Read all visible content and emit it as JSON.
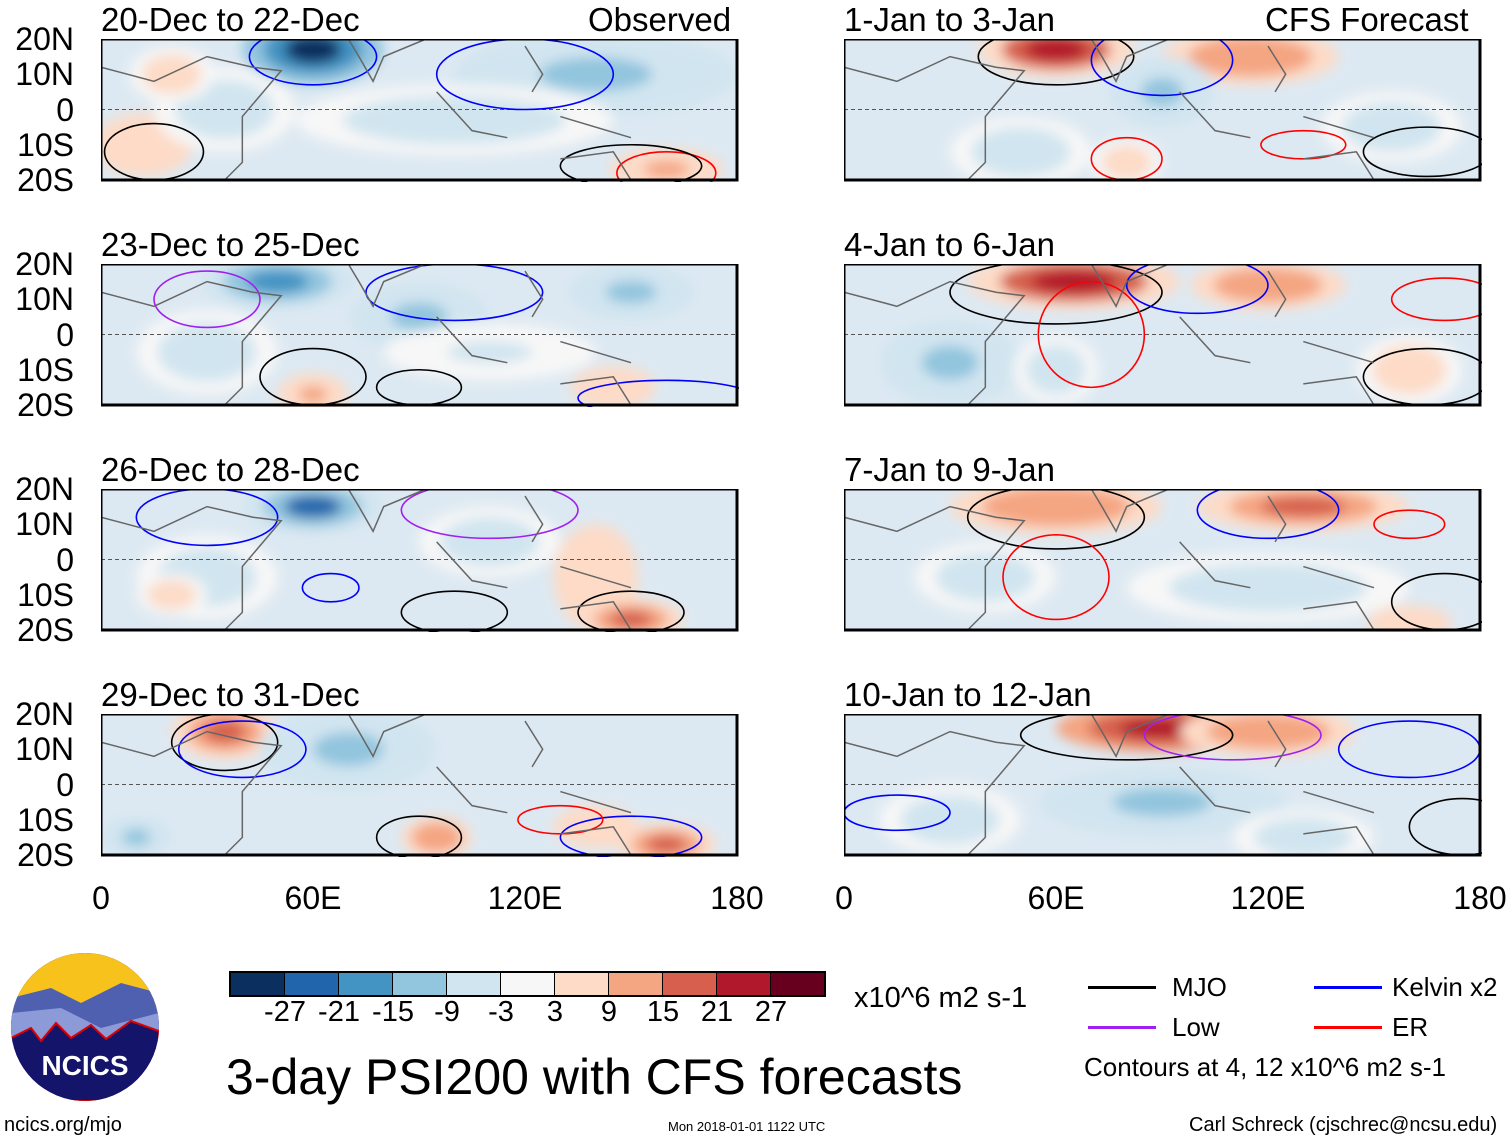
{
  "header": {
    "left_label": "Observed",
    "right_label": "CFS Forecast"
  },
  "y_ticks": [
    "20N",
    "10N",
    "0",
    "10S",
    "20S"
  ],
  "x_ticks": [
    "0",
    "60E",
    "120E",
    "180"
  ],
  "colorbar": {
    "colors": [
      "#0b2f5e",
      "#2166ac",
      "#4393c3",
      "#92c5de",
      "#d1e5f0",
      "#f7f7f7",
      "#fddbc7",
      "#f4a582",
      "#d6604d",
      "#b2182b",
      "#67001f"
    ],
    "ticks": [
      "-27",
      "-21",
      "-15",
      "-9",
      "-3",
      "3",
      "9",
      "15",
      "21",
      "27"
    ],
    "units": "x10^6 m2 s-1"
  },
  "legend": {
    "items": [
      {
        "label": "MJO",
        "color": "#000000"
      },
      {
        "label": "Kelvin x2",
        "color": "#0000ff"
      },
      {
        "label": "Low",
        "color": "#a020f0"
      },
      {
        "label": "ER",
        "color": "#ff0000"
      }
    ],
    "note": "Contours at 4, 12 x10^6 m2 s-1"
  },
  "title": "3-day PSI200 with CFS forecasts",
  "logo_text": "NCICS",
  "footer": {
    "url": "ncics.org/mjo",
    "timestamp": "Mon 2018-01-01 1122 UTC",
    "author": "Carl Schreck (cjschrec@ncsu.edu)"
  },
  "chart_data": {
    "type": "heatmap",
    "lon_range": [
      0,
      180
    ],
    "lat_range": [
      -20,
      20
    ],
    "panels": [
      {
        "title": "20-Dec to 22-Dec",
        "blobs": [
          [
            60,
            17,
            -27,
            20,
            10
          ],
          [
            140,
            10,
            -9,
            40,
            12
          ],
          [
            100,
            -3,
            -6,
            45,
            10
          ],
          [
            12,
            -10,
            9,
            14,
            9
          ],
          [
            160,
            -17,
            12,
            16,
            6
          ],
          [
            35,
            0,
            -5,
            20,
            12
          ],
          [
            20,
            10,
            6,
            12,
            8
          ]
        ],
        "contours": [
          [
            15,
            -12,
            "#000",
            14,
            8
          ],
          [
            120,
            10,
            "#00f",
            25,
            10
          ],
          [
            160,
            -18,
            "#f00",
            14,
            6
          ],
          [
            150,
            -16,
            "#000",
            20,
            6
          ],
          [
            60,
            15,
            "#00f",
            18,
            8
          ]
        ]
      },
      {
        "title": "1-Jan to 3-Jan",
        "blobs": [
          [
            60,
            17,
            24,
            22,
            8
          ],
          [
            115,
            15,
            15,
            25,
            8
          ],
          [
            90,
            5,
            -9,
            15,
            10
          ],
          [
            80,
            -15,
            8,
            10,
            7
          ],
          [
            50,
            -12,
            -6,
            20,
            10
          ],
          [
            155,
            -5,
            -5,
            20,
            10
          ]
        ],
        "contours": [
          [
            60,
            15,
            "#000",
            22,
            8
          ],
          [
            90,
            14,
            "#00f",
            20,
            10
          ],
          [
            80,
            -14,
            "#f00",
            10,
            6
          ],
          [
            130,
            -10,
            "#f00",
            12,
            4
          ],
          [
            165,
            -12,
            "#000",
            18,
            7
          ]
        ]
      },
      {
        "title": "23-Dec to 25-Dec",
        "blobs": [
          [
            50,
            15,
            -18,
            22,
            8
          ],
          [
            90,
            5,
            -9,
            20,
            10
          ],
          [
            150,
            12,
            -9,
            18,
            8
          ],
          [
            60,
            -17,
            12,
            10,
            6
          ],
          [
            145,
            -15,
            9,
            12,
            6
          ],
          [
            30,
            -5,
            -6,
            20,
            12
          ],
          [
            110,
            -5,
            -3,
            30,
            8
          ]
        ],
        "contours": [
          [
            60,
            -12,
            "#000",
            15,
            8
          ],
          [
            100,
            12,
            "#00f",
            25,
            8
          ],
          [
            160,
            -18,
            "#00f",
            25,
            5
          ],
          [
            30,
            10,
            "#a020f0",
            15,
            8
          ],
          [
            90,
            -15,
            "#000",
            12,
            5
          ]
        ]
      },
      {
        "title": "4-Jan to 6-Jan",
        "blobs": [
          [
            65,
            15,
            24,
            30,
            8
          ],
          [
            120,
            14,
            15,
            22,
            7
          ],
          [
            30,
            -8,
            -9,
            20,
            12
          ],
          [
            60,
            -10,
            -5,
            12,
            10
          ],
          [
            160,
            -10,
            6,
            15,
            10
          ]
        ],
        "contours": [
          [
            60,
            12,
            "#000",
            30,
            9
          ],
          [
            100,
            14,
            "#00f",
            20,
            8
          ],
          [
            70,
            0,
            "#f00",
            15,
            15
          ],
          [
            170,
            10,
            "#f00",
            15,
            6
          ],
          [
            165,
            -12,
            "#000",
            18,
            8
          ]
        ]
      },
      {
        "title": "26-Dec to 28-Dec",
        "blobs": [
          [
            60,
            15,
            -21,
            20,
            8
          ],
          [
            30,
            -5,
            -6,
            20,
            12
          ],
          [
            110,
            5,
            -6,
            20,
            10
          ],
          [
            140,
            -5,
            9,
            12,
            15
          ],
          [
            150,
            -17,
            18,
            15,
            6
          ],
          [
            20,
            -10,
            6,
            10,
            6
          ]
        ],
        "contours": [
          [
            30,
            12,
            "#00f",
            20,
            8
          ],
          [
            110,
            14,
            "#a020f0",
            25,
            8
          ],
          [
            150,
            -15,
            "#000",
            15,
            6
          ],
          [
            100,
            -15,
            "#000",
            15,
            6
          ],
          [
            65,
            -8,
            "#00f",
            8,
            4
          ]
        ]
      },
      {
        "title": "7-Jan to 9-Jan",
        "blobs": [
          [
            60,
            15,
            15,
            30,
            8
          ],
          [
            130,
            15,
            18,
            30,
            7
          ],
          [
            40,
            -5,
            -6,
            20,
            10
          ],
          [
            120,
            -8,
            -6,
            40,
            10
          ],
          [
            160,
            -18,
            9,
            12,
            5
          ]
        ],
        "contours": [
          [
            60,
            12,
            "#000",
            25,
            9
          ],
          [
            120,
            14,
            "#00f",
            20,
            8
          ],
          [
            60,
            -5,
            "#f00",
            15,
            12
          ],
          [
            160,
            10,
            "#f00",
            10,
            4
          ],
          [
            170,
            -12,
            "#000",
            15,
            8
          ]
        ]
      },
      {
        "title": "29-Dec to 31-Dec",
        "blobs": [
          [
            35,
            15,
            21,
            15,
            8
          ],
          [
            70,
            10,
            -12,
            25,
            12
          ],
          [
            95,
            -15,
            15,
            10,
            6
          ],
          [
            160,
            -17,
            18,
            14,
            6
          ],
          [
            140,
            -12,
            9,
            12,
            6
          ],
          [
            10,
            -15,
            -9,
            10,
            6
          ]
        ],
        "contours": [
          [
            35,
            12,
            "#000",
            15,
            8
          ],
          [
            40,
            10,
            "#00f",
            18,
            8
          ],
          [
            90,
            -15,
            "#000",
            12,
            6
          ],
          [
            150,
            -15,
            "#00f",
            20,
            6
          ],
          [
            130,
            -10,
            "#f00",
            12,
            4
          ]
        ]
      },
      {
        "title": "10-Jan to 12-Jan",
        "blobs": [
          [
            90,
            16,
            27,
            30,
            7
          ],
          [
            120,
            15,
            15,
            25,
            7
          ],
          [
            90,
            -5,
            -9,
            35,
            10
          ],
          [
            130,
            -15,
            -6,
            20,
            8
          ],
          [
            30,
            -10,
            -5,
            20,
            10
          ]
        ],
        "contours": [
          [
            80,
            14,
            "#000",
            30,
            7
          ],
          [
            110,
            14,
            "#a020f0",
            25,
            7
          ],
          [
            15,
            -8,
            "#00f",
            15,
            5
          ],
          [
            160,
            10,
            "#00f",
            20,
            8
          ],
          [
            175,
            -12,
            "#000",
            15,
            8
          ]
        ]
      }
    ]
  }
}
